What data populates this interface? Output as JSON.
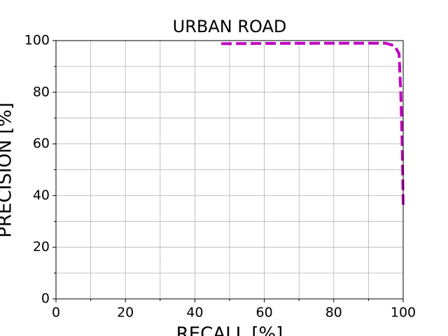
{
  "chart_data": {
    "type": "line",
    "title": "URBAN ROAD",
    "x_label": "RECALL [%]",
    "y_label": "PRECISION [%]",
    "x": [
      47.6,
      60,
      80,
      95,
      97.5,
      98.8,
      99.3,
      99.7,
      100
    ],
    "series": [
      {
        "color": "#bf00bf",
        "values": [
          98.8,
          98.9,
          99,
          99,
          98,
          95,
          80,
          60,
          35.8
        ]
      }
    ],
    "xlim": [
      0,
      100
    ],
    "ylim": [
      0,
      100
    ],
    "xticks": [
      0,
      20,
      40,
      60,
      80,
      100
    ],
    "yticks": [
      0,
      20,
      40,
      60,
      80,
      100
    ],
    "xticks_minor": [
      10,
      30,
      50,
      70,
      90
    ],
    "yticks_minor": [
      10,
      30,
      50,
      70,
      90
    ],
    "grid": true,
    "line_style": "dashed"
  }
}
